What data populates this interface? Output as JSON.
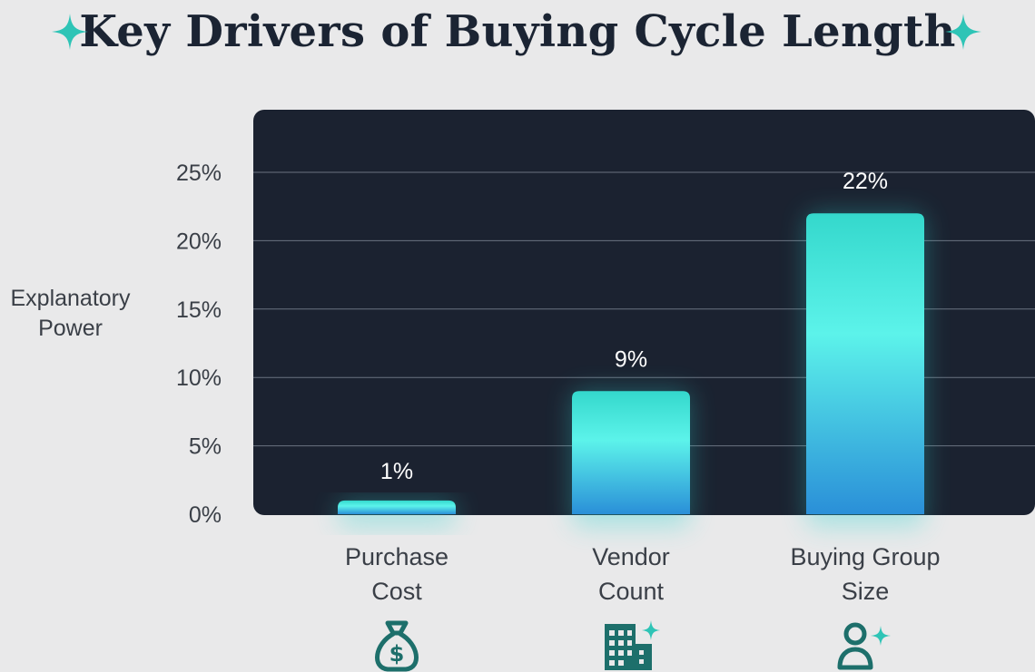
{
  "title": "Key Drivers of Buying Cycle Length",
  "icons": {
    "title_left": "sparkle-icon",
    "title_right": "sparkle-icon",
    "categories": [
      "money-bag-icon",
      "building-sparkle-icon",
      "user-sparkle-icon"
    ]
  },
  "colors": {
    "background": "#e9e9ea",
    "panel": "#1b2230",
    "title": "#1b2433",
    "accent": "#2ec4b6",
    "bar_top": "#45e3e5",
    "bar_bottom": "#2a90d8",
    "icon": "#1d6f6b"
  },
  "chart_data": {
    "type": "bar",
    "title": "Key Drivers of Buying Cycle Length",
    "ylabel": "Explanatory\nPower",
    "xlabel": "",
    "categories": [
      "Purchase\nCost",
      "Vendor\nCount",
      "Buying Group\nSize"
    ],
    "values": [
      1,
      9,
      22
    ],
    "data_labels": [
      "1%",
      "9%",
      "22%"
    ],
    "ylim": [
      0,
      25
    ],
    "yticks": [
      0,
      5,
      10,
      15,
      20,
      25
    ],
    "ytick_labels": [
      "0%",
      "5%",
      "10%",
      "15%",
      "20%",
      "25%"
    ],
    "grid": true
  }
}
